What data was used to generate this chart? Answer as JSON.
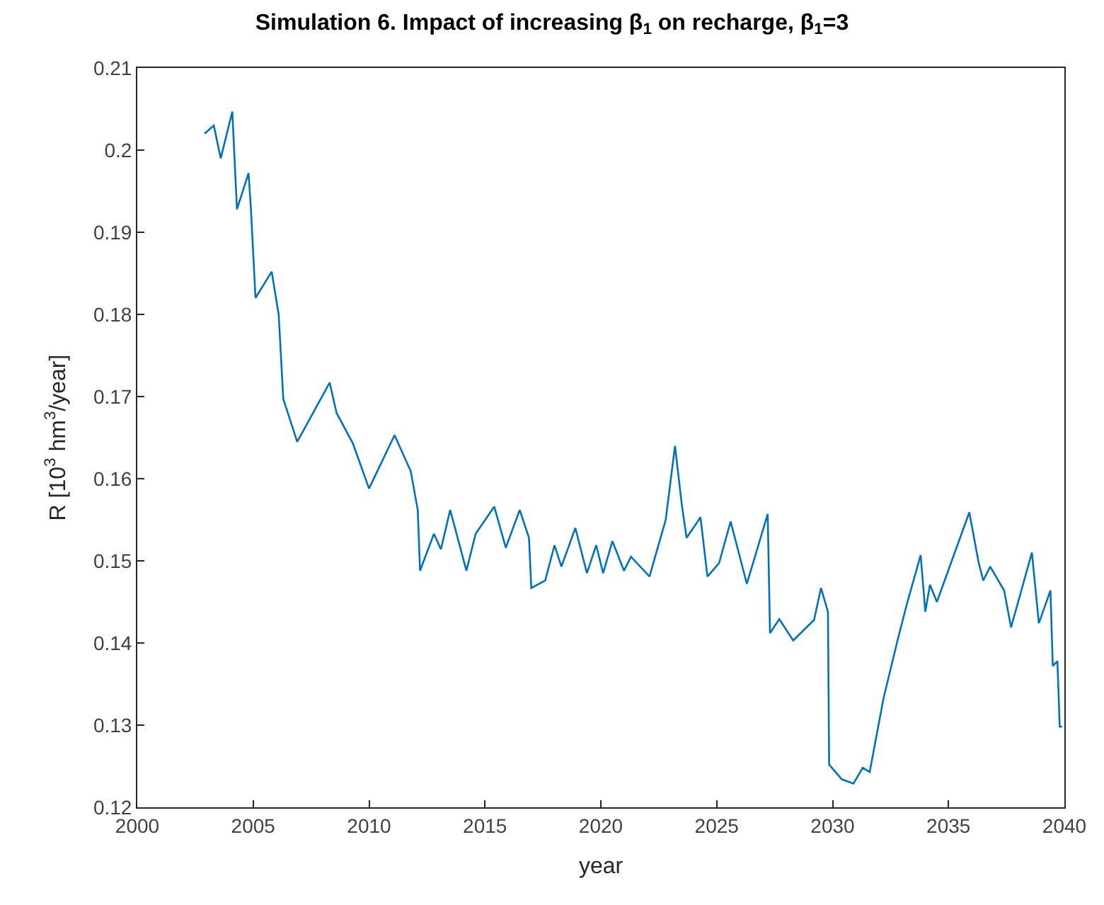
{
  "chart_data": {
    "type": "line",
    "title": "Simulation 6. Impact of increasing β$_{1}$ on recharge, β$_{1}$=3",
    "xlabel": "year",
    "ylabel": "R [10$^{3}$ hm$^{3}$/year]",
    "xlim": [
      2000,
      2040
    ],
    "xticks": [
      2000,
      2005,
      2010,
      2015,
      2020,
      2025,
      2030,
      2035,
      2040
    ],
    "ylim": [
      0.12,
      0.21
    ],
    "yticks": [
      0.12,
      0.13,
      0.14,
      0.15,
      0.16,
      0.17,
      0.18,
      0.19,
      0.2,
      0.21
    ],
    "marker": "none",
    "line_style": "solid",
    "series": [
      {
        "color": "#0072bd",
        "x": [
          2002.9,
          2003.3,
          2003.6,
          2004.1,
          2004.3,
          2004.8,
          2004.9,
          2005.1,
          2005.8,
          2006.1,
          2006.3,
          2006.9,
          2008.3,
          2008.6,
          2009.3,
          2010.0,
          2011.1,
          2011.8,
          2012.1,
          2012.2,
          2012.8,
          2013.1,
          2013.5,
          2014.2,
          2014.6,
          2015.4,
          2015.9,
          2016.5,
          2016.9,
          2017.0,
          2017.6,
          2018.0,
          2018.3,
          2018.9,
          2019.4,
          2019.8,
          2020.1,
          2020.5,
          2021.0,
          2021.3,
          2022.1,
          2022.8,
          2023.2,
          2023.5,
          2023.7,
          2024.3,
          2024.6,
          2025.1,
          2025.6,
          2026.3,
          2027.2,
          2027.3,
          2027.7,
          2028.3,
          2029.2,
          2029.5,
          2029.8,
          2029.85,
          2030.4,
          2030.9,
          2031.3,
          2031.6,
          2032.2,
          2032.8,
          2033.2,
          2033.8,
          2034.0,
          2034.2,
          2034.5,
          2035.5,
          2035.9,
          2036.3,
          2036.5,
          2036.8,
          2037.4,
          2037.7,
          2038.6,
          2038.9,
          2039.4,
          2039.5,
          2039.7,
          2039.8,
          2039.9
        ],
        "values": [
          0.202,
          0.203,
          0.199,
          0.2047,
          0.1928,
          0.1972,
          0.193,
          0.182,
          0.1852,
          0.18,
          0.1697,
          0.1645,
          0.1717,
          0.168,
          0.1643,
          0.1588,
          0.1653,
          0.1609,
          0.1562,
          0.1488,
          0.1533,
          0.1514,
          0.1562,
          0.1488,
          0.1533,
          0.1566,
          0.1516,
          0.1562,
          0.1528,
          0.1467,
          0.1476,
          0.1519,
          0.1493,
          0.154,
          0.1485,
          0.1519,
          0.1485,
          0.1524,
          0.1488,
          0.1505,
          0.1481,
          0.155,
          0.164,
          0.1567,
          0.1528,
          0.1553,
          0.1481,
          0.1497,
          0.1548,
          0.1472,
          0.1557,
          0.1412,
          0.1429,
          0.1403,
          0.1428,
          0.1467,
          0.1438,
          0.1252,
          0.1234,
          0.1229,
          0.1248,
          0.1243,
          0.1333,
          0.1403,
          0.1447,
          0.1507,
          0.1438,
          0.1471,
          0.145,
          0.1528,
          0.1559,
          0.1498,
          0.1476,
          0.1493,
          0.1464,
          0.1419,
          0.151,
          0.1424,
          0.1464,
          0.1372,
          0.1378,
          0.1298,
          0.1298
        ]
      }
    ]
  }
}
